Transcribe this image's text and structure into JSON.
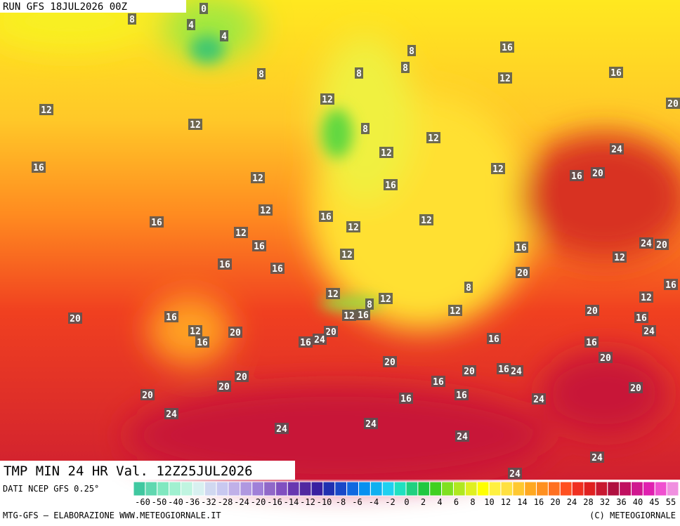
{
  "header": {
    "run": "RUN GFS 18JUL2026 00Z"
  },
  "map": {
    "title": "TMP MIN 24 HR Val. 12Z25JUL2026",
    "labels": [
      0,
      8,
      4,
      4,
      8,
      12,
      12,
      16,
      16,
      12,
      8,
      8,
      8,
      8,
      16,
      12,
      16,
      20,
      12,
      12,
      12,
      16,
      20,
      24,
      12,
      16,
      12,
      16,
      12,
      12,
      12,
      16,
      16,
      16,
      12,
      16,
      12,
      24,
      20,
      20,
      8,
      16,
      12,
      12,
      12,
      8,
      12,
      16,
      12,
      20,
      16,
      24,
      16,
      20,
      12,
      16,
      20,
      20,
      24,
      16,
      16,
      16,
      20,
      20,
      20,
      16,
      24,
      20,
      20,
      16,
      16,
      20,
      20,
      16,
      24,
      24,
      24,
      24,
      24,
      24,
      24
    ]
  },
  "footer": {
    "source": "DATI NCEP GFS 0.25°",
    "credit": "MTG-GFS — ELABORAZIONE WWW.METEOGIORNALE.IT",
    "copyright": "(C) METEOGIORNALE"
  },
  "scale": {
    "labels": [
      -60,
      -50,
      -40,
      -36,
      -32,
      -28,
      -24,
      -20,
      -16,
      -14,
      -12,
      -10,
      -8,
      -6,
      -4,
      -2,
      0,
      2,
      4,
      6,
      8,
      10,
      12,
      14,
      16,
      20,
      24,
      28,
      32,
      36,
      40,
      45,
      55
    ],
    "colors": [
      "#40c8a0",
      "#60d8b0",
      "#80e8c0",
      "#a0f0d0",
      "#c0f4e0",
      "#d8f0f0",
      "#d0d8f0",
      "#c8c8f0",
      "#c0b0e8",
      "#b098e0",
      "#a080d8",
      "#9068c8",
      "#8050c0",
      "#6838b0",
      "#5028a0",
      "#3820a0",
      "#2030b0",
      "#1848c8",
      "#1068e0",
      "#0890f0",
      "#10b0f0",
      "#20d0f0",
      "#20e0c0",
      "#20d080",
      "#20c840",
      "#40d020",
      "#80e020",
      "#b0e820",
      "#e0f020",
      "#ffff00",
      "#fff040",
      "#ffe040",
      "#ffc830",
      "#ffa820",
      "#ff9020",
      "#ff7020",
      "#ff5020",
      "#f03020",
      "#e02020",
      "#c81830",
      "#b01040",
      "#c01060",
      "#d01890",
      "#e020b0",
      "#f050d0",
      "#f090e0"
    ]
  }
}
